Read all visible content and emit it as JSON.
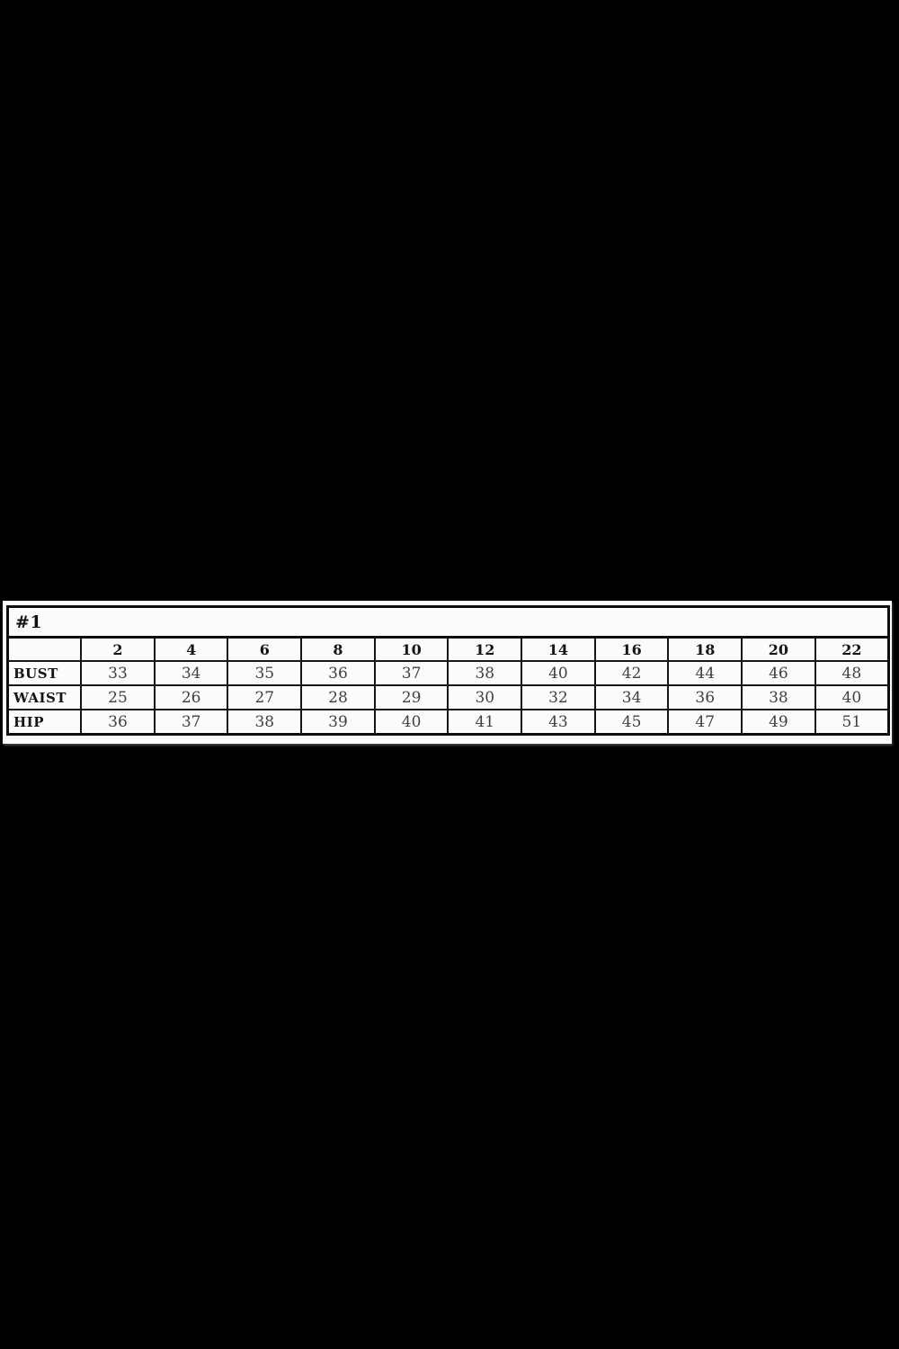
{
  "page": {
    "background_color": "#000000",
    "paper_color": "#fbfbfa"
  },
  "colors": {
    "border": "#0e0e0e",
    "header_text": "#141414",
    "data_text": "#3f3f3f"
  },
  "chart_data": {
    "type": "table",
    "title": "#1",
    "columns": [
      "",
      "2",
      "4",
      "6",
      "8",
      "10",
      "12",
      "14",
      "16",
      "18",
      "20",
      "22"
    ],
    "rows": [
      {
        "label": "BUST",
        "values": [
          33,
          34,
          35,
          36,
          37,
          38,
          40,
          42,
          44,
          46,
          48
        ]
      },
      {
        "label": "WAIST",
        "values": [
          25,
          26,
          27,
          28,
          29,
          30,
          32,
          34,
          36,
          38,
          40
        ]
      },
      {
        "label": "HIP",
        "values": [
          36,
          37,
          38,
          39,
          40,
          41,
          43,
          45,
          47,
          49,
          51
        ]
      }
    ]
  }
}
